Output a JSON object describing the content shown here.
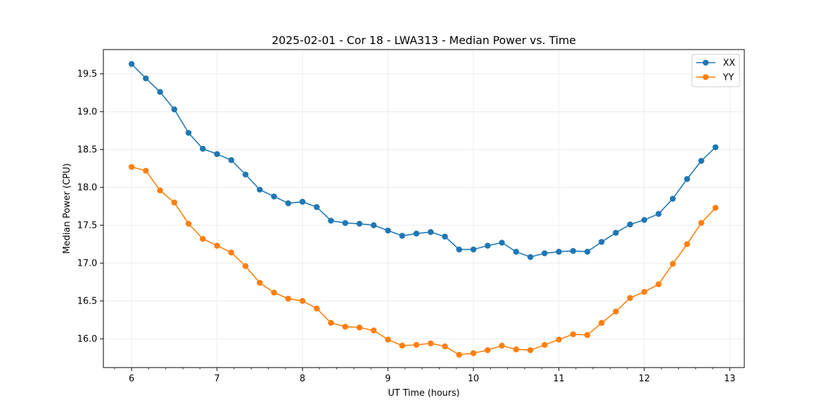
{
  "chart_data": {
    "type": "line",
    "title": "2025-02-01 - Cor 18 - LWA313 - Median Power vs. Time",
    "xlabel": "UT Time (hours)",
    "ylabel": "Median Power (CPU)",
    "xlim": [
      5.67,
      13.17
    ],
    "ylim": [
      15.62,
      19.82
    ],
    "xticks": [
      6,
      7,
      8,
      9,
      10,
      11,
      12,
      13
    ],
    "xtick_labels": [
      "6",
      "7",
      "8",
      "9",
      "10",
      "11",
      "12",
      "13"
    ],
    "yticks": [
      16.0,
      16.5,
      17.0,
      17.5,
      18.0,
      18.5,
      19.0,
      19.5
    ],
    "ytick_labels": [
      "16.0",
      "16.5",
      "17.0",
      "17.5",
      "18.0",
      "18.5",
      "19.0",
      "19.5"
    ],
    "grid": true,
    "legend": "top-right",
    "x": [
      6.0,
      6.1667,
      6.3333,
      6.5,
      6.6667,
      6.8333,
      7.0,
      7.1667,
      7.3333,
      7.5,
      7.6667,
      7.8333,
      8.0,
      8.1667,
      8.3333,
      8.5,
      8.6667,
      8.8333,
      9.0,
      9.1667,
      9.3333,
      9.5,
      9.6667,
      9.8333,
      10.0,
      10.1667,
      10.3333,
      10.5,
      10.6667,
      10.8333,
      11.0,
      11.1667,
      11.3333,
      11.5,
      11.6667,
      11.8333,
      12.0,
      12.1667,
      12.3333,
      12.5,
      12.6667,
      12.8333
    ],
    "series": [
      {
        "name": "XX",
        "color": "#1f77b4",
        "values": [
          19.63,
          19.44,
          19.26,
          19.03,
          18.72,
          18.51,
          18.44,
          18.36,
          18.17,
          17.97,
          17.88,
          17.79,
          17.81,
          17.74,
          17.56,
          17.53,
          17.52,
          17.5,
          17.43,
          17.36,
          17.39,
          17.41,
          17.35,
          17.18,
          17.18,
          17.23,
          17.27,
          17.15,
          17.08,
          17.13,
          17.15,
          17.16,
          17.15,
          17.28,
          17.4,
          17.51,
          17.57,
          17.65,
          17.85,
          18.11,
          18.35,
          18.53
        ]
      },
      {
        "name": "YY",
        "color": "#ff7f0e",
        "values": [
          18.27,
          18.22,
          17.96,
          17.8,
          17.52,
          17.32,
          17.23,
          17.14,
          16.96,
          16.74,
          16.61,
          16.53,
          16.5,
          16.4,
          16.21,
          16.16,
          16.15,
          16.11,
          15.99,
          15.91,
          15.92,
          15.94,
          15.9,
          15.79,
          15.81,
          15.85,
          15.91,
          15.86,
          15.85,
          15.92,
          15.99,
          16.06,
          16.05,
          16.21,
          16.36,
          16.54,
          16.62,
          16.72,
          16.99,
          17.25,
          17.53,
          17.73
        ]
      }
    ]
  }
}
